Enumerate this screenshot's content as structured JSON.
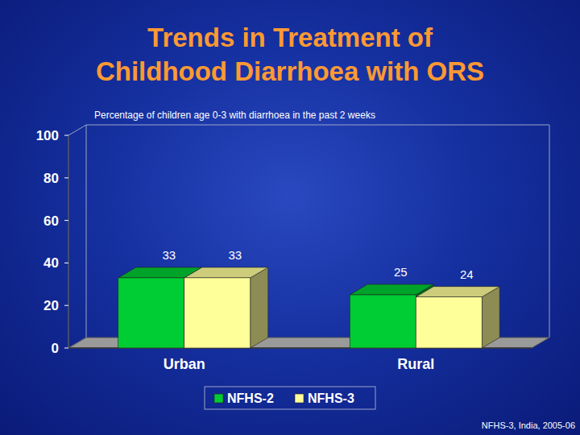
{
  "chart_data": {
    "type": "bar",
    "title": "Trends in Treatment of Childhood Diarrhoea with ORS",
    "subtitle": "Percentage of children age 0-3 with diarrhoea in the past 2 weeks",
    "annotation": "NFHS-3, India, 2005-06",
    "categories": [
      "Urban",
      "Rural"
    ],
    "series": [
      {
        "name": "NFHS-2",
        "color": "#00cc33",
        "values": [
          33,
          25
        ]
      },
      {
        "name": "NFHS-3",
        "color": "#ffff99",
        "values": [
          33,
          24
        ]
      }
    ],
    "ylim": [
      0,
      100
    ],
    "yticks": [
      0,
      20,
      40,
      60,
      80,
      100
    ],
    "grid": false,
    "legend": "bottom",
    "data_labels": true
  }
}
